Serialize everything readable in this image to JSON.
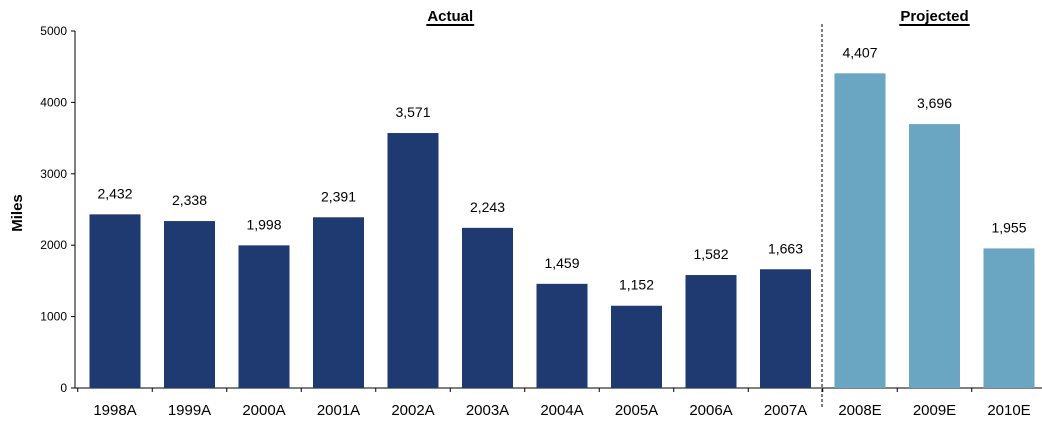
{
  "chart_data": {
    "type": "bar",
    "ylabel": "Miles",
    "xlabel": "",
    "ylim": [
      0,
      5000
    ],
    "yticks": [
      0,
      1000,
      2000,
      3000,
      4000,
      5000
    ],
    "grid": false,
    "sections": [
      {
        "label": "Actual",
        "start": 0,
        "end": 9
      },
      {
        "label": "Projected",
        "start": 10,
        "end": 12
      }
    ],
    "categories": [
      "1998A",
      "1999A",
      "2000A",
      "2001A",
      "2002A",
      "2003A",
      "2004A",
      "2005A",
      "2006A",
      "2007A",
      "2008E",
      "2009E",
      "2010E"
    ],
    "values": [
      2432,
      2338,
      1998,
      2391,
      3571,
      2243,
      1459,
      1152,
      1582,
      1663,
      4407,
      3696,
      1955
    ],
    "value_labels": [
      "2,432",
      "2,338",
      "1,998",
      "2,391",
      "3,571",
      "2,243",
      "1,459",
      "1,152",
      "1,582",
      "1,663",
      "4,407",
      "3,696",
      "1,955"
    ],
    "colors": {
      "actual": "#1f3a70",
      "projected": "#6aa6c2"
    }
  }
}
